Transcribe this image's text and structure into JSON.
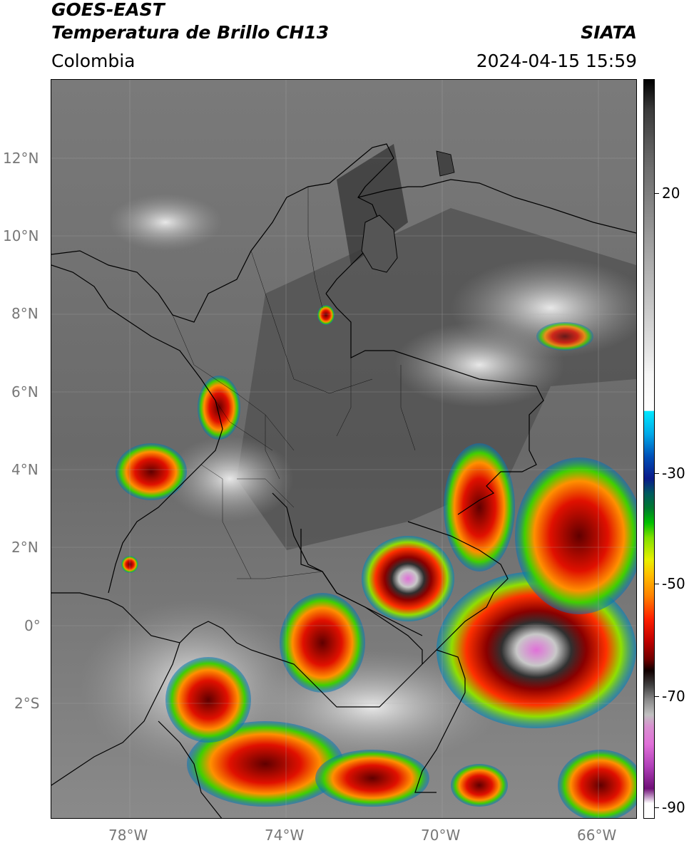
{
  "header": {
    "title_line1": "GOES-EAST",
    "title_line2": "Temperatura de Brillo CH13",
    "region": "Colombia",
    "source": "SIATA",
    "datetime": "2024-04-15 15:59"
  },
  "map": {
    "lat_range": [
      -5.0,
      14.0
    ],
    "lon_range": [
      -80.0,
      -65.0
    ],
    "lat_ticks": [
      "12°N",
      "10°N",
      "8°N",
      "6°N",
      "4°N",
      "2°N",
      "0°",
      "2°S"
    ],
    "lat_tick_values": [
      12,
      10,
      8,
      6,
      4,
      2,
      0,
      -2
    ],
    "lon_ticks": [
      "78°W",
      "74°W",
      "70°W",
      "66°W"
    ],
    "lon_tick_values": [
      -78,
      -74,
      -70,
      -66
    ],
    "background_color": "#6a6a6a",
    "border_color": "#000000",
    "gridlines": true
  },
  "colorbar": {
    "labels": [
      "20",
      "-30",
      "-50",
      "-70",
      "-90"
    ],
    "values": [
      20,
      -30,
      -50,
      -70,
      -90
    ],
    "range": [
      -92,
      38
    ],
    "colors": {
      "warm": "#808080",
      "cold_cyan": "#00d8ff",
      "green": "#00c000",
      "yellow": "#ffd000",
      "red": "#e00000",
      "dark_red": "#600000",
      "pink": "#e070d8"
    }
  }
}
